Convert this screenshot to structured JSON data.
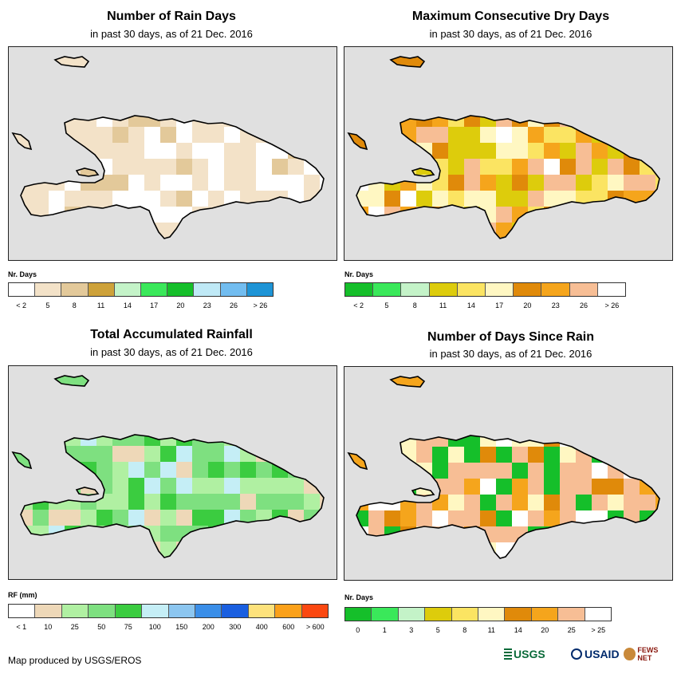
{
  "panels": [
    {
      "id": "rain-days",
      "title": "Number of Rain Days",
      "subtitle": "in past 30 days, as of 21 Dec. 2016",
      "legend_title": "Nr. Days",
      "legend_colors": [
        "#ffffff",
        "#f3e2c8",
        "#e3c99a",
        "#cea23a",
        "#c4f3c8",
        "#3ae85a",
        "#15bf2a",
        "#bfe9f6",
        "#72bdf0",
        "#1e94d6"
      ],
      "legend_labels": [
        "< 2",
        "5",
        "8",
        "11",
        "14",
        "17",
        "20",
        "23",
        "26",
        "> 26"
      ]
    },
    {
      "id": "dry-days",
      "title": "Maximum Consecutive Dry Days",
      "subtitle": "in past 30 days, as of 21 Dec. 2016",
      "legend_title": "Nr. Days",
      "legend_colors": [
        "#15bf2a",
        "#3ae85a",
        "#c4f3c8",
        "#ddcc0c",
        "#fbe462",
        "#fff7c2",
        "#e08a0a",
        "#f5a51c",
        "#f7be95",
        "#ffffff"
      ],
      "legend_labels": [
        "< 2",
        "5",
        "8",
        "11",
        "14",
        "17",
        "20",
        "23",
        "26",
        "> 26"
      ]
    },
    {
      "id": "total-rainfall",
      "title": "Total Accumulated Rainfall",
      "subtitle": "in past 30 days, as of 21 Dec. 2016",
      "legend_title": "RF (mm)",
      "legend_colors": [
        "#ffffff",
        "#eed8b8",
        "#b0f0a2",
        "#7ee080",
        "#3bcc40",
        "#c5eef6",
        "#8cc6f0",
        "#3a8ee8",
        "#1a5fe0",
        "#fde27c",
        "#fba11a",
        "#fb4811"
      ],
      "legend_labels": [
        "< 1",
        "10",
        "25",
        "50",
        "75",
        "100",
        "150",
        "200",
        "300",
        "400",
        "600",
        "> 600"
      ]
    },
    {
      "id": "days-since-rain",
      "title": "Number of Days Since Rain",
      "subtitle": "in past 30 days, as of 21 Dec. 2016",
      "legend_title": "Nr. Days",
      "legend_colors": [
        "#15bf2a",
        "#3ae85a",
        "#c4f3c8",
        "#ddcc0c",
        "#fbe462",
        "#fff7c2",
        "#e08a0a",
        "#f5a51c",
        "#f7be95",
        "#ffffff"
      ],
      "legend_labels": [
        "0",
        "1",
        "3",
        "5",
        "8",
        "11",
        "14",
        "20",
        "25",
        "> 25"
      ]
    }
  ],
  "credit": "Map produced by USGS/EROS",
  "logos": {
    "usgs": "USGS",
    "usaid": "USAID",
    "fews": "FEWS NET"
  }
}
